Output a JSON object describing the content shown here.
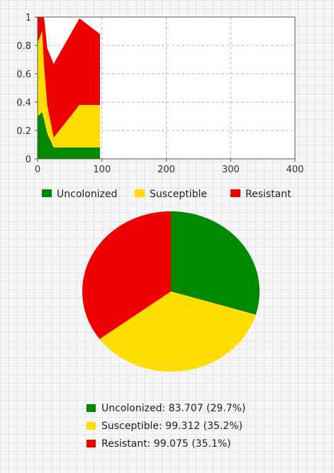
{
  "chart_data": [
    {
      "type": "area",
      "stacked": true,
      "xlim": [
        0,
        400
      ],
      "ylim": [
        0,
        1
      ],
      "x_ticks": [
        "0",
        "100",
        "200",
        "300",
        "400"
      ],
      "y_ticks": [
        "0",
        "0.2",
        "0.4",
        "0.6",
        "0.8",
        "1"
      ],
      "grid": true,
      "legend_position": "bottom",
      "x": [
        0,
        7,
        10,
        15,
        25,
        65,
        97
      ],
      "series": [
        {
          "name": "Uncolonized",
          "color": "#008800",
          "values": [
            0.3,
            0.33,
            0.28,
            0.18,
            0.08,
            0.08,
            0.08
          ]
        },
        {
          "name": "Susceptible",
          "color": "#ffdd00",
          "values": [
            0.52,
            0.57,
            0.38,
            0.2,
            0.07,
            0.3,
            0.3
          ]
        },
        {
          "name": "Resistant",
          "color": "#ee0000",
          "values": [
            0.18,
            0.1,
            0.34,
            0.4,
            0.52,
            0.61,
            0.5
          ]
        }
      ]
    },
    {
      "type": "pie",
      "slices": [
        {
          "name": "Uncolonized",
          "value": 83.707,
          "percent": 29.7,
          "color": "#008800",
          "legend": "Uncolonized: 83.707 (29.7%)"
        },
        {
          "name": "Susceptible",
          "value": 99.312,
          "percent": 35.2,
          "color": "#ffdd00",
          "legend": "Susceptible: 99.312 (35.2%)"
        },
        {
          "name": "Resistant",
          "value": 99.075,
          "percent": 35.1,
          "color": "#ee0000",
          "legend": "Resistant: 99.075 (35.1%)"
        }
      ]
    }
  ]
}
